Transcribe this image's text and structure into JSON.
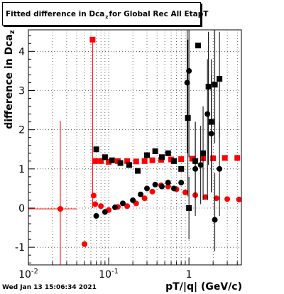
{
  "title": {
    "prefix": "Fitted difference in Dca",
    "sub": "z",
    "suffix": " for Global Rec All EtapT"
  },
  "y_title": {
    "main": "difference in Dca",
    "sub": "z"
  },
  "x_title": "pT/|q| (GeV/c)",
  "timestamp": "Wed Jan 13 15:06:34 2021",
  "colors": {
    "series_red": "#ff0000",
    "series_black": "#000000",
    "frame": "#000000",
    "grid": "#000000"
  },
  "chart_data": {
    "type": "scatter",
    "log_x": true,
    "xlim": [
      0.01,
      4.5
    ],
    "ylim": [
      -1.45,
      4.55
    ],
    "grid": true,
    "x_ticks": [
      {
        "value": 0.01,
        "base": "10",
        "exp": "-2"
      },
      {
        "value": 0.1,
        "base": "10",
        "exp": "-1"
      },
      {
        "value": 1,
        "base": "1",
        "exp": ""
      }
    ],
    "y_ticks": [
      -1,
      0,
      1,
      2,
      3,
      4
    ],
    "series": [
      {
        "marker": "circle",
        "color": "#ff0000",
        "points": [
          {
            "x": 0.025,
            "y": -0.02,
            "xerr": 0.015,
            "yerr_lo": 1.45,
            "yerr_hi": 2.25
          },
          {
            "x": 0.05,
            "y": -0.92,
            "xerr": 0.004
          },
          {
            "x": 0.065,
            "y": 0.32,
            "xerr": 0.002
          },
          {
            "x": 0.068,
            "y": 0.1,
            "xerr": 0.002
          },
          {
            "x": 0.08,
            "y": 0.05
          },
          {
            "x": 0.1,
            "y": -0.05
          },
          {
            "x": 0.13,
            "y": 0.03
          },
          {
            "x": 0.17,
            "y": 0.05
          },
          {
            "x": 0.22,
            "y": 0.12
          },
          {
            "x": 0.28,
            "y": 0.25
          },
          {
            "x": 0.35,
            "y": 0.42
          },
          {
            "x": 0.45,
            "y": 0.58
          },
          {
            "x": 0.55,
            "y": 0.55
          },
          {
            "x": 0.7,
            "y": 0.48
          },
          {
            "x": 0.9,
            "y": 0.4
          },
          {
            "x": 1.2,
            "y": 0.33
          },
          {
            "x": 1.6,
            "y": 0.28
          },
          {
            "x": 2.2,
            "y": 0.25
          },
          {
            "x": 3.0,
            "y": 0.23
          },
          {
            "x": 4.2,
            "y": 0.22
          }
        ]
      },
      {
        "marker": "square",
        "color": "#ff0000",
        "points": [
          {
            "x": 0.063,
            "y": 4.3,
            "xerr": 0.003,
            "yerr_lo": 4.3
          },
          {
            "x": 0.068,
            "y": 1.2
          },
          {
            "x": 0.08,
            "y": 1.2
          },
          {
            "x": 0.1,
            "y": 1.18
          },
          {
            "x": 0.13,
            "y": 1.2
          },
          {
            "x": 0.17,
            "y": 1.2
          },
          {
            "x": 0.22,
            "y": 1.19
          },
          {
            "x": 0.28,
            "y": 1.2
          },
          {
            "x": 0.35,
            "y": 1.22
          },
          {
            "x": 0.45,
            "y": 1.23
          },
          {
            "x": 0.6,
            "y": 1.24
          },
          {
            "x": 0.8,
            "y": 1.25
          },
          {
            "x": 1.1,
            "y": 1.26
          },
          {
            "x": 1.5,
            "y": 1.27
          },
          {
            "x": 2.0,
            "y": 1.27
          },
          {
            "x": 2.8,
            "y": 1.28
          },
          {
            "x": 4.0,
            "y": 1.28
          }
        ]
      },
      {
        "marker": "circle",
        "color": "#000000",
        "points": [
          {
            "x": 0.07,
            "y": -0.2
          },
          {
            "x": 0.09,
            "y": -0.1
          },
          {
            "x": 0.12,
            "y": 0.02
          },
          {
            "x": 0.15,
            "y": 0.12
          },
          {
            "x": 0.2,
            "y": 0.2
          },
          {
            "x": 0.25,
            "y": 0.35
          },
          {
            "x": 0.3,
            "y": 0.5
          },
          {
            "x": 0.38,
            "y": 0.6
          },
          {
            "x": 0.46,
            "y": 0.55
          },
          {
            "x": 0.55,
            "y": 0.65
          },
          {
            "x": 0.65,
            "y": 0.5
          },
          {
            "x": 0.8,
            "y": 0.65
          },
          {
            "x": 0.95,
            "y": 3.2,
            "yerr_lo": 1.8,
            "yerr_hi": 1.35
          },
          {
            "x": 1.0,
            "y": 3.5,
            "yerr_lo": 2.2,
            "yerr_hi": 1.05
          },
          {
            "x": 1.2,
            "y": 1.0,
            "yerr_lo": 1.2,
            "yerr_hi": 1.2
          },
          {
            "x": 1.4,
            "y": 1.1,
            "yerr_lo": 1.0,
            "yerr_hi": 1.0
          },
          {
            "x": 1.7,
            "y": 2.4,
            "yerr_lo": 2.2,
            "yerr_hi": 1.4
          },
          {
            "x": 1.9,
            "y": 1.9,
            "yerr_lo": 1.5,
            "yerr_hi": 1.5
          },
          {
            "x": 2.1,
            "y": -0.3,
            "yerr_lo": 0.8,
            "yerr_hi": 1.2
          },
          {
            "x": 2.4,
            "y": 1.0,
            "yerr_lo": 1.2,
            "yerr_hi": 1.2
          }
        ]
      },
      {
        "marker": "square",
        "color": "#000000",
        "points": [
          {
            "x": 0.07,
            "y": 1.5
          },
          {
            "x": 0.09,
            "y": 1.3
          },
          {
            "x": 0.11,
            "y": 1.22
          },
          {
            "x": 0.14,
            "y": 1.15
          },
          {
            "x": 0.18,
            "y": 1.1
          },
          {
            "x": 0.23,
            "y": 0.95
          },
          {
            "x": 0.3,
            "y": 1.35
          },
          {
            "x": 0.38,
            "y": 1.45
          },
          {
            "x": 0.46,
            "y": 1.3
          },
          {
            "x": 0.55,
            "y": 1.4
          },
          {
            "x": 0.65,
            "y": 1.2
          },
          {
            "x": 0.8,
            "y": 1.0
          },
          {
            "x": 0.97,
            "y": 2.3,
            "yerr_lo": 2.0,
            "yerr_hi": 2.0
          },
          {
            "x": 1.0,
            "y": 0.0,
            "yerr_lo": 0.8,
            "yerr_hi": 0.8
          },
          {
            "x": 1.2,
            "y": 1.2,
            "yerr_lo": 1.0,
            "yerr_hi": 1.0
          },
          {
            "x": 1.3,
            "y": 4.15
          },
          {
            "x": 1.5,
            "y": 1.4,
            "yerr_lo": 1.2,
            "yerr_hi": 1.2
          },
          {
            "x": 1.75,
            "y": 3.1,
            "yerr_lo": 2.0,
            "yerr_hi": 1.4
          },
          {
            "x": 1.9,
            "y": 2.2,
            "yerr_lo": 1.8,
            "yerr_hi": 1.6
          },
          {
            "x": 2.1,
            "y": 3.15,
            "yerr_lo": 1.5,
            "yerr_hi": 1.4
          },
          {
            "x": 2.4,
            "y": 3.3,
            "yerr_lo": 1.5,
            "yerr_hi": 1.2
          }
        ]
      }
    ]
  }
}
